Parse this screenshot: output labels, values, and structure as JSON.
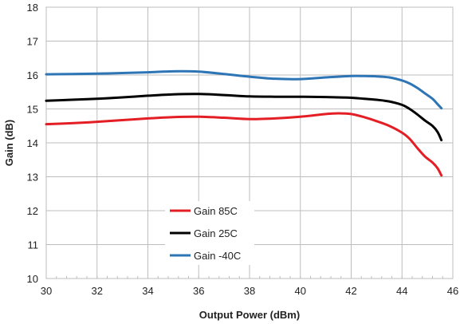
{
  "chart_data": {
    "type": "line",
    "title": "",
    "xlabel": "Output Power (dBm)",
    "ylabel": "Gain (dB)",
    "xlim": [
      30,
      46
    ],
    "ylim": [
      10,
      18
    ],
    "xticks": [
      30,
      32,
      34,
      36,
      38,
      40,
      42,
      44,
      46
    ],
    "yticks": [
      10,
      11,
      12,
      13,
      14,
      15,
      16,
      17,
      18
    ],
    "xtick_labels": [
      "30",
      "32",
      "34",
      "36",
      "38",
      "40",
      "42",
      "44",
      "46"
    ],
    "ytick_labels": [
      "10",
      "11",
      "12",
      "13",
      "14",
      "15",
      "16",
      "17",
      "18"
    ],
    "grid": true,
    "legend_position": "lower-left",
    "series": [
      {
        "name": "Gain 85C",
        "color": "#e31e24",
        "x": [
          30,
          31,
          32,
          33,
          34,
          35,
          36,
          37,
          38,
          39,
          40,
          41,
          41.5,
          42,
          42.5,
          43,
          43.5,
          44,
          44.3,
          44.6,
          44.9,
          45.2,
          45.4,
          45.55
        ],
        "y": [
          14.55,
          14.58,
          14.62,
          14.67,
          14.72,
          14.76,
          14.77,
          14.74,
          14.7,
          14.72,
          14.77,
          14.85,
          14.87,
          14.85,
          14.76,
          14.64,
          14.5,
          14.3,
          14.12,
          13.85,
          13.6,
          13.42,
          13.25,
          13.04
        ]
      },
      {
        "name": "Gain 25C",
        "color": "#000000",
        "x": [
          30,
          31,
          32,
          33,
          34,
          35,
          36,
          37,
          38,
          39,
          40,
          41,
          42,
          42.5,
          43,
          43.5,
          44,
          44.3,
          44.6,
          44.9,
          45.2,
          45.4,
          45.55
        ],
        "y": [
          15.24,
          15.27,
          15.3,
          15.34,
          15.39,
          15.43,
          15.44,
          15.41,
          15.37,
          15.36,
          15.36,
          15.35,
          15.33,
          15.3,
          15.27,
          15.22,
          15.12,
          15.0,
          14.84,
          14.66,
          14.5,
          14.32,
          14.08
        ]
      },
      {
        "name": "Gain -40C",
        "color": "#2e75b6",
        "x": [
          30,
          31,
          32,
          33,
          34,
          35,
          36,
          37,
          38,
          39,
          40,
          41,
          42,
          42.5,
          43,
          43.5,
          44,
          44.3,
          44.6,
          44.9,
          45.2,
          45.4,
          45.55
        ],
        "y": [
          16.02,
          16.03,
          16.04,
          16.06,
          16.08,
          16.11,
          16.1,
          16.03,
          15.95,
          15.89,
          15.88,
          15.93,
          15.97,
          15.97,
          15.96,
          15.93,
          15.84,
          15.75,
          15.62,
          15.46,
          15.3,
          15.14,
          15.02
        ]
      }
    ]
  }
}
